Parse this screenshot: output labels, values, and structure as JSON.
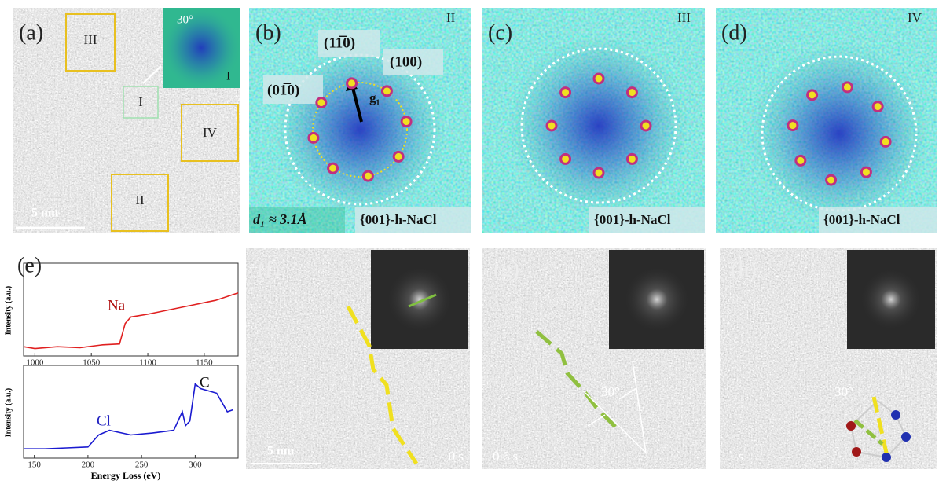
{
  "panels": {
    "a": {
      "label": "(a)",
      "boxes": [
        "III",
        "I",
        "IV",
        "II"
      ],
      "scale": "5 nm",
      "inset_angle": "30°",
      "inset_label": "I"
    },
    "b": {
      "label": "(b)",
      "region": "II",
      "spots": [
        "(11̅0)",
        "(100)",
        "(01̅0)"
      ],
      "vector": "g₁",
      "spacing": "d₁ ≈ 3.1Å",
      "zone": "{001}-h-NaCl"
    },
    "c": {
      "label": "(c)",
      "region": "III",
      "zone": "{001}-h-NaCl"
    },
    "d": {
      "label": "(d)",
      "region": "IV",
      "zone": "{001}-h-NaCl"
    },
    "e": {
      "label": "(e)",
      "x_label": "Energy Loss (eV)",
      "spectra": [
        {
          "name": "Na",
          "color": "#e02020",
          "y_label": "Intensity (a.u.)",
          "x": [
            990,
            1000,
            1020,
            1040,
            1060,
            1075,
            1080,
            1085,
            1100,
            1120,
            1140,
            1160,
            1180
          ],
          "values": [
            0.1,
            0.08,
            0.1,
            0.09,
            0.12,
            0.13,
            0.35,
            0.42,
            0.45,
            0.5,
            0.55,
            0.6,
            0.68
          ],
          "xlim": [
            990,
            1180
          ],
          "ylim": [
            0,
            1
          ],
          "xticks": [
            1000,
            1050,
            1100,
            1150
          ]
        },
        {
          "name": "Cl",
          "color": "#1a1ad0",
          "y_label": "Intensity (a.u.)",
          "edge_label": "C",
          "x": [
            140,
            160,
            180,
            200,
            210,
            220,
            240,
            260,
            280,
            288,
            291,
            295,
            300,
            305,
            320,
            330,
            335
          ],
          "values": [
            0.1,
            0.1,
            0.11,
            0.12,
            0.25,
            0.3,
            0.25,
            0.27,
            0.3,
            0.5,
            0.35,
            0.4,
            0.8,
            0.75,
            0.7,
            0.5,
            0.52
          ],
          "xlim": [
            140,
            340
          ],
          "ylim": [
            0,
            1
          ],
          "xticks": [
            150,
            200,
            250,
            300
          ]
        }
      ]
    },
    "f": {
      "label": "(f)",
      "scale": "5 nm",
      "time": "0 s"
    },
    "g": {
      "label": "(g)",
      "angle": "30°",
      "time": "0.6 s"
    },
    "h": {
      "label": "(h)",
      "angle": "30°",
      "time": "1 s"
    }
  }
}
